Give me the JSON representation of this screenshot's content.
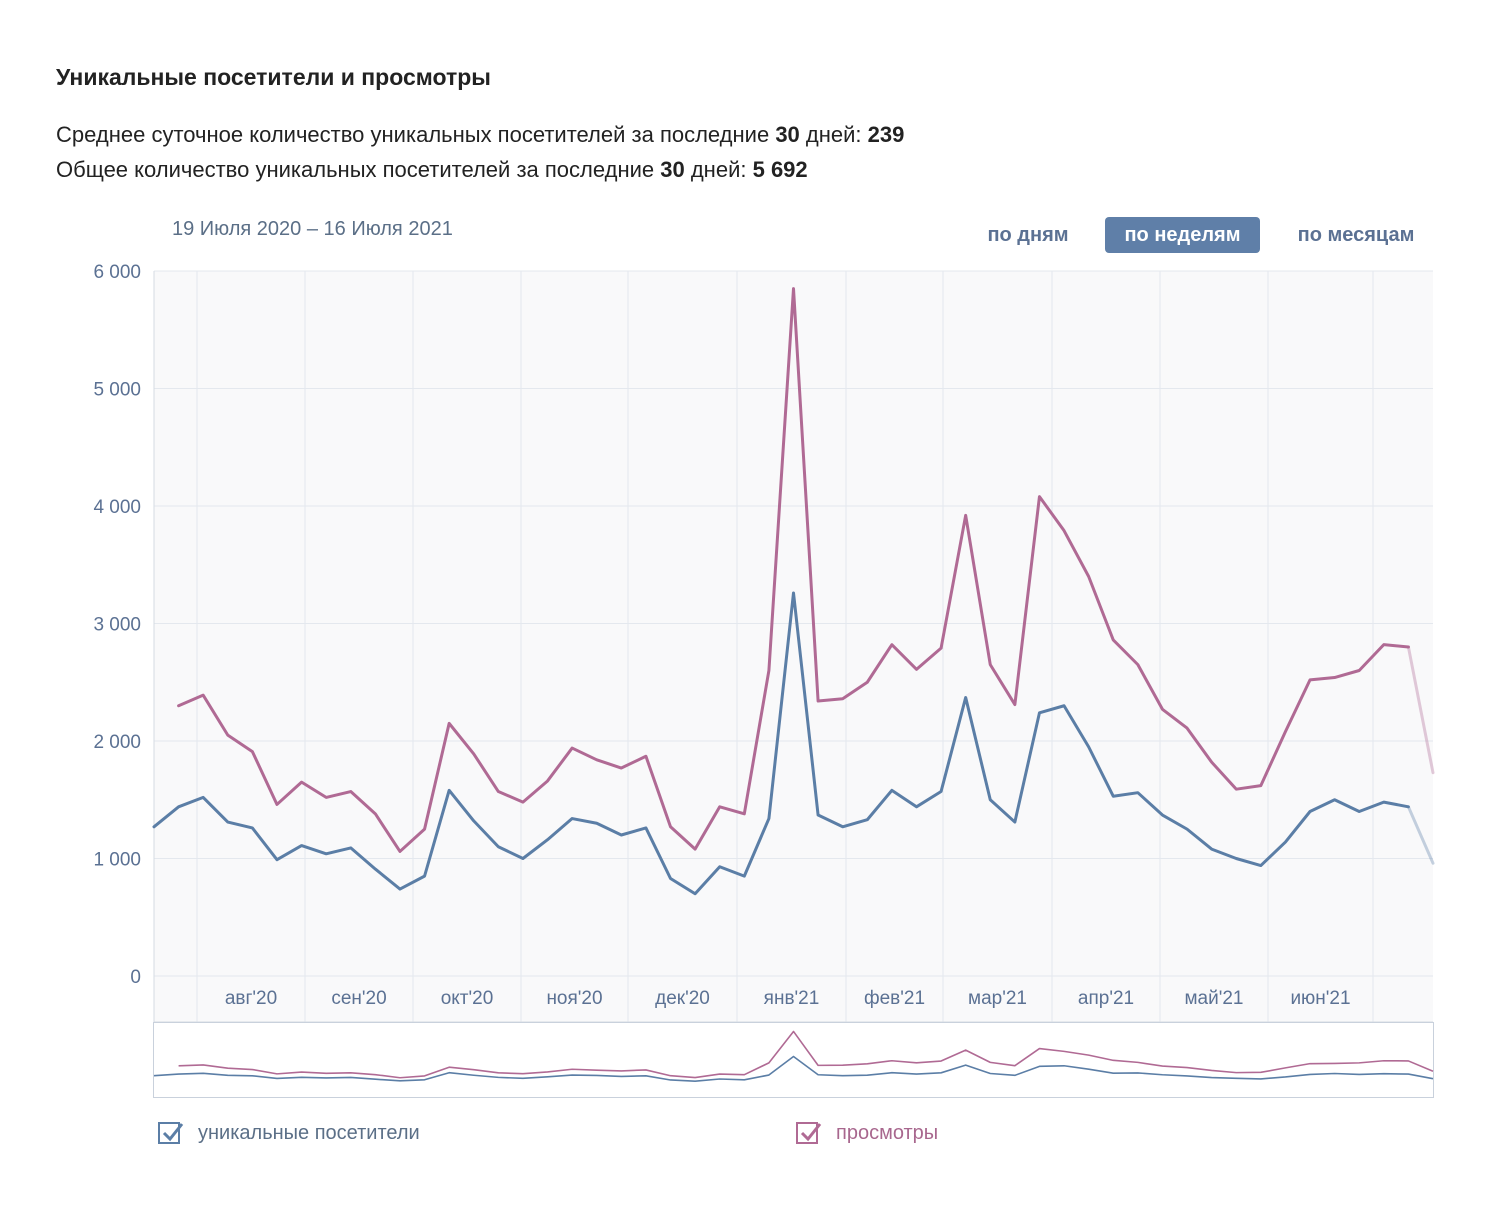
{
  "header": {
    "title": "Уникальные посетители и просмотры",
    "stat1": {
      "prefix": "Среднее суточное количество уникальных посетителей за последние ",
      "days": "30",
      "mid": " дней: ",
      "value": "239"
    },
    "stat2": {
      "prefix": "Общее количество уникальных посетителей за последние ",
      "days": "30",
      "mid": " дней: ",
      "value": "5 692"
    }
  },
  "controls": {
    "date_range": "19 Июля 2020 – 16 Июля 2021",
    "periods": {
      "day": "по дням",
      "week": "по неделям",
      "month": "по месяцам"
    },
    "active_period": "week"
  },
  "legend": {
    "visitors": {
      "label": "уникальные посетители",
      "checked": true
    },
    "views": {
      "label": "просмотры",
      "checked": true
    }
  },
  "chart_data": {
    "type": "line",
    "title": "Уникальные посетители и просмотры",
    "xlabel": "",
    "ylabel": "",
    "ylim": [
      0,
      6000
    ],
    "yticks": [
      0,
      1000,
      2000,
      3000,
      4000,
      5000,
      6000
    ],
    "ytick_labels": [
      "0",
      "1 000",
      "2 000",
      "3 000",
      "4 000",
      "5 000",
      "6 000"
    ],
    "x_month_labels": [
      "авг'20",
      "сен'20",
      "окт'20",
      "ноя'20",
      "дек'20",
      "янв'21",
      "фев'21",
      "мар'21",
      "апр'21",
      "май'21",
      "июн'21"
    ],
    "grid": true,
    "colors": {
      "visitors": "#5b7ea6",
      "views": "#b06a94",
      "grid": "#e4e8ee",
      "axis_text": "#5b7193",
      "plot_bg": "#f9f9fa"
    },
    "series": [
      {
        "name": "уникальные посетители",
        "values": [
          1270,
          1440,
          1520,
          1310,
          1260,
          990,
          1110,
          1040,
          1090,
          910,
          740,
          850,
          1580,
          1320,
          1100,
          1000,
          1160,
          1340,
          1300,
          1200,
          1260,
          830,
          700,
          930,
          850,
          1340,
          3260,
          1370,
          1270,
          1330,
          1580,
          1440,
          1570,
          2370,
          1500,
          1310,
          2240,
          2300,
          1950,
          1530,
          1560,
          1370,
          1250,
          1080,
          1000,
          940,
          1140,
          1400,
          1500,
          1400,
          1480,
          1440,
          960
        ]
      },
      {
        "name": "просмотры",
        "values": [
          null,
          2300,
          2390,
          2050,
          1910,
          1460,
          1650,
          1520,
          1570,
          1380,
          1060,
          1250,
          2150,
          1890,
          1570,
          1480,
          1660,
          1940,
          1840,
          1770,
          1870,
          1270,
          1080,
          1440,
          1380,
          2600,
          5850,
          2340,
          2360,
          2500,
          2820,
          2610,
          2790,
          3920,
          2650,
          2310,
          4080,
          3790,
          3400,
          2860,
          2650,
          2270,
          2110,
          1820,
          1590,
          1620,
          2080,
          2520,
          2540,
          2600,
          2820,
          2800,
          1730
        ]
      }
    ]
  }
}
